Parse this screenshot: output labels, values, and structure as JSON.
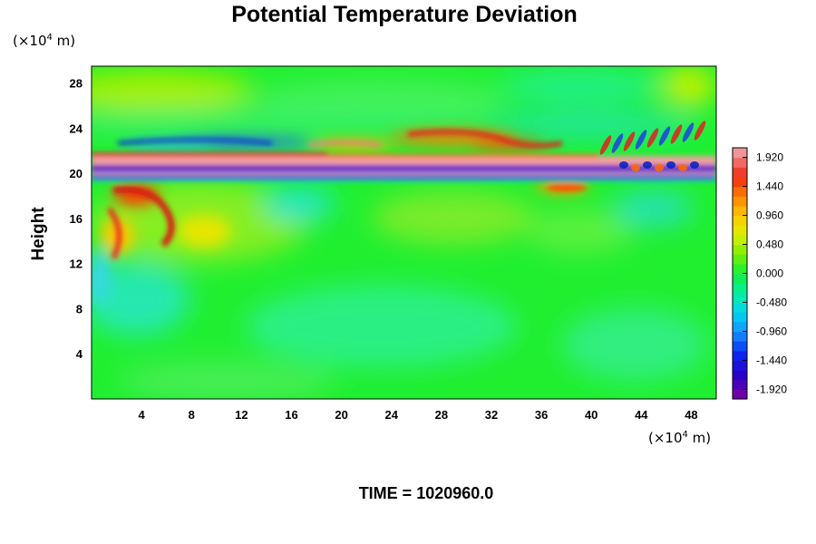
{
  "chart_data": {
    "type": "heatmap",
    "title": "Potential Temperature Deviation",
    "ylabel": "Height",
    "x_unit": {
      "prefix": "(×10",
      "exp": "4",
      "suffix": " m)"
    },
    "y_unit": {
      "prefix": "(×10",
      "exp": "4",
      "suffix": " m)"
    },
    "x_ticks": [
      "4",
      "8",
      "12",
      "16",
      "20",
      "24",
      "28",
      "32",
      "36",
      "40",
      "44",
      "48"
    ],
    "y_ticks": [
      "4",
      "8",
      "12",
      "16",
      "20",
      "24",
      "28"
    ],
    "x_tick_values": [
      4,
      8,
      12,
      16,
      20,
      24,
      28,
      32,
      36,
      40,
      44,
      48
    ],
    "y_tick_values": [
      4,
      8,
      12,
      16,
      20,
      24,
      28
    ],
    "xlim": [
      0,
      50
    ],
    "ylim": [
      0,
      29.5
    ],
    "colorbar": {
      "labels": [
        "1.920",
        "1.440",
        "0.960",
        "0.480",
        "0.000",
        "-0.480",
        "-0.960",
        "-1.440",
        "-1.920"
      ],
      "range": [
        -2.08,
        2.08
      ],
      "levels": 26
    },
    "footer": "TIME = 1020960.0"
  }
}
